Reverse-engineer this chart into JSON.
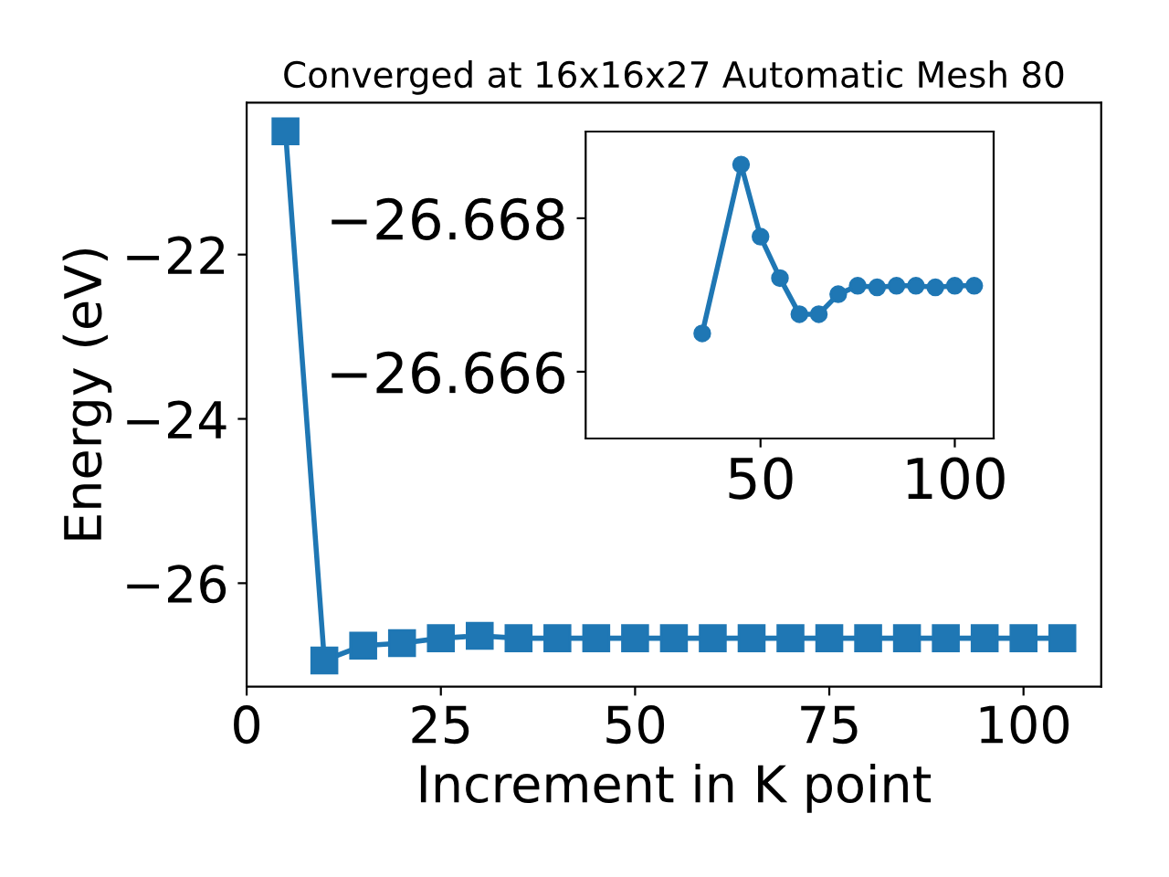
{
  "chart_data": [
    {
      "type": "line",
      "title": "Converged at 16x16x27 Automatic Mesh 80",
      "xlabel": "Increment in K point",
      "ylabel": "Energy (eV)",
      "x": [
        5,
        10,
        15,
        20,
        25,
        30,
        35,
        40,
        45,
        50,
        55,
        60,
        65,
        70,
        75,
        80,
        85,
        90,
        95,
        100,
        105
      ],
      "series": [
        {
          "color": "#1f77b4",
          "values": [
            -20.5,
            -26.94,
            -26.76,
            -26.73,
            -26.67,
            -26.64,
            -26.67,
            -26.67,
            -26.67,
            -26.67,
            -26.67,
            -26.67,
            -26.67,
            -26.67,
            -26.67,
            -26.67,
            -26.67,
            -26.67,
            -26.67,
            -26.67,
            -26.67
          ]
        }
      ],
      "xlim": [
        0,
        110
      ],
      "xticks": [
        0,
        25,
        50,
        75,
        100
      ],
      "ylim": [
        -27.26,
        -20.15
      ],
      "yticks": [
        -26,
        -24,
        -22
      ],
      "marker": "square",
      "line_style": "solid",
      "grid": false,
      "legend": false
    },
    {
      "type": "line",
      "x": [
        35,
        40,
        45,
        50,
        55,
        60,
        65,
        70,
        75,
        80,
        85,
        90,
        95,
        100,
        105
      ],
      "series": [
        {
          "color": "#1f77b4",
          "values": [
            -26.6665,
            null,
            -26.6687,
            -26.66776,
            -26.66722,
            -26.66675,
            -26.66675,
            -26.66701,
            -26.66712,
            -26.6671,
            -26.66712,
            -26.66712,
            -26.6671,
            -26.66712,
            -26.66712
          ]
        }
      ],
      "xlim": [
        5,
        110
      ],
      "xticks": [
        50,
        100
      ],
      "ylim": [
        -26.66513,
        -26.66913
      ],
      "yticks": [
        -26.668,
        -26.666
      ],
      "marker": "circle",
      "line_style": "solid",
      "grid": false,
      "legend": false
    }
  ]
}
